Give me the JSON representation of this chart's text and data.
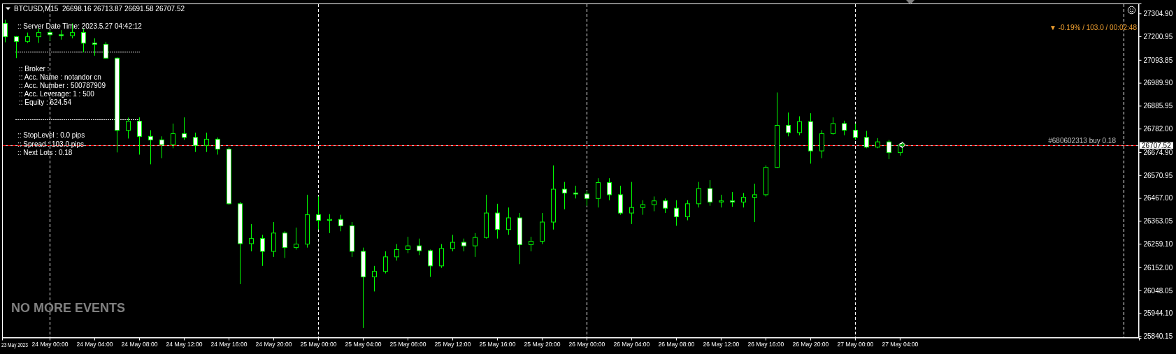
{
  "chart_data": {
    "type": "candlestick",
    "title": "BTCUSD,M15  26698.16 26713.87 26691.58 26707.52",
    "color": "#00ff00",
    "x": [
      "2023-05-23T20:00",
      "2023-05-23T21:00",
      "2023-05-23T22:00",
      "2023-05-23T23:00",
      "2023-05-24T00:00",
      "2023-05-24T01:00",
      "2023-05-24T02:00",
      "2023-05-24T03:00",
      "2023-05-24T04:00",
      "2023-05-24T05:00",
      "2023-05-24T06:00",
      "2023-05-24T07:00",
      "2023-05-24T08:00",
      "2023-05-24T09:00",
      "2023-05-24T10:00",
      "2023-05-24T11:00",
      "2023-05-24T12:00",
      "2023-05-24T13:00",
      "2023-05-24T14:00",
      "2023-05-24T15:00",
      "2023-05-24T16:00",
      "2023-05-24T17:00",
      "2023-05-24T18:00",
      "2023-05-24T19:00",
      "2023-05-24T20:00",
      "2023-05-24T21:00",
      "2023-05-24T22:00",
      "2023-05-24T23:00",
      "2023-05-25T00:00",
      "2023-05-25T01:00",
      "2023-05-25T02:00",
      "2023-05-25T03:00",
      "2023-05-25T04:00",
      "2023-05-25T05:00",
      "2023-05-25T06:00",
      "2023-05-25T07:00",
      "2023-05-25T08:00",
      "2023-05-25T09:00",
      "2023-05-25T10:00",
      "2023-05-25T11:00",
      "2023-05-25T12:00",
      "2023-05-25T13:00",
      "2023-05-25T14:00",
      "2023-05-25T15:00",
      "2023-05-25T16:00",
      "2023-05-25T17:00",
      "2023-05-25T18:00",
      "2023-05-25T19:00",
      "2023-05-25T20:00",
      "2023-05-25T21:00",
      "2023-05-25T22:00",
      "2023-05-25T23:00",
      "2023-05-26T00:00",
      "2023-05-26T01:00",
      "2023-05-26T02:00",
      "2023-05-26T03:00",
      "2023-05-26T04:00",
      "2023-05-26T05:00",
      "2023-05-26T06:00",
      "2023-05-26T07:00",
      "2023-05-26T08:00",
      "2023-05-26T09:00",
      "2023-05-26T10:00",
      "2023-05-26T11:00",
      "2023-05-26T12:00",
      "2023-05-26T13:00",
      "2023-05-26T14:00",
      "2023-05-26T15:00",
      "2023-05-26T16:00",
      "2023-05-26T17:00",
      "2023-05-26T18:00",
      "2023-05-26T19:00",
      "2023-05-26T20:00",
      "2023-05-26T21:00",
      "2023-05-26T22:00",
      "2023-05-26T23:00",
      "2023-05-27T00:00",
      "2023-05-27T01:00",
      "2023-05-27T02:00",
      "2023-05-27T03:00",
      "2023-05-27T04:00"
    ],
    "ohlc": [
      [
        27260,
        27276,
        27174,
        27199
      ],
      [
        27199,
        27202,
        27102,
        27178
      ],
      [
        27178,
        27218,
        27171,
        27199
      ],
      [
        27199,
        27239,
        27171,
        27218
      ],
      [
        27218,
        27229,
        27181,
        27208
      ],
      [
        27208,
        27229,
        27186,
        27204
      ],
      [
        27204,
        27260,
        27192,
        27218
      ],
      [
        27218,
        27234,
        27128,
        27170
      ],
      [
        27170,
        27192,
        27113,
        27165
      ],
      [
        27165,
        27176,
        27100,
        27102
      ],
      [
        27102,
        27105,
        26674,
        26774
      ],
      [
        26774,
        26832,
        26737,
        26816
      ],
      [
        26816,
        26833,
        26664,
        26747
      ],
      [
        26747,
        26775,
        26620,
        26731
      ],
      [
        26731,
        26747,
        26648,
        26709
      ],
      [
        26709,
        26805,
        26693,
        26759
      ],
      [
        26759,
        26833,
        26731,
        26742
      ],
      [
        26742,
        26764,
        26676,
        26706
      ],
      [
        26706,
        26764,
        26676,
        26734
      ],
      [
        26734,
        26742,
        26664,
        26689
      ],
      [
        26689,
        26697,
        26437,
        26441
      ],
      [
        26441,
        26449,
        26076,
        26260
      ],
      [
        26260,
        26349,
        26225,
        26283
      ],
      [
        26283,
        26300,
        26159,
        26225
      ],
      [
        26225,
        26358,
        26200,
        26308
      ],
      [
        26308,
        26316,
        26195,
        26242
      ],
      [
        26242,
        26333,
        26233,
        26258
      ],
      [
        26258,
        26482,
        26242,
        26391
      ],
      [
        26391,
        26474,
        26324,
        26366
      ],
      [
        26366,
        26394,
        26308,
        26370
      ],
      [
        26370,
        26391,
        26316,
        26341
      ],
      [
        26341,
        26358,
        26200,
        26225
      ],
      [
        26225,
        26242,
        25877,
        26109
      ],
      [
        26109,
        26159,
        26043,
        26134
      ],
      [
        26134,
        26225,
        26125,
        26200
      ],
      [
        26200,
        26258,
        26183,
        26233
      ],
      [
        26233,
        26291,
        26217,
        26250
      ],
      [
        26250,
        26283,
        26208,
        26228
      ],
      [
        26228,
        26233,
        26109,
        26159
      ],
      [
        26159,
        26258,
        26150,
        26238
      ],
      [
        26238,
        26300,
        26225,
        26266
      ],
      [
        26266,
        26283,
        26225,
        26250
      ],
      [
        26250,
        26308,
        26200,
        26288
      ],
      [
        26288,
        26482,
        26283,
        26399
      ],
      [
        26399,
        26441,
        26283,
        26324
      ],
      [
        26324,
        26424,
        26300,
        26377
      ],
      [
        26377,
        26399,
        26167,
        26255
      ],
      [
        26255,
        26291,
        26225,
        26271
      ],
      [
        26271,
        26399,
        26258,
        26358
      ],
      [
        26358,
        26615,
        26324,
        26507
      ],
      [
        26507,
        26540,
        26416,
        26490
      ],
      [
        26490,
        26523,
        26465,
        26485
      ],
      [
        26485,
        26499,
        26432,
        26465
      ],
      [
        26465,
        26557,
        26424,
        26537
      ],
      [
        26537,
        26557,
        26457,
        26482
      ],
      [
        26482,
        26523,
        26391,
        26399
      ],
      [
        26399,
        26540,
        26349,
        26424
      ],
      [
        26424,
        26457,
        26391,
        26437
      ],
      [
        26437,
        26474,
        26407,
        26454
      ],
      [
        26454,
        26465,
        26399,
        26421
      ],
      [
        26421,
        26457,
        26341,
        26382
      ],
      [
        26382,
        26457,
        26366,
        26441
      ],
      [
        26441,
        26540,
        26424,
        26510
      ],
      [
        26510,
        26548,
        26432,
        26449
      ],
      [
        26449,
        26482,
        26424,
        26454
      ],
      [
        26454,
        26494,
        26427,
        26449
      ],
      [
        26449,
        26490,
        26424,
        26470
      ],
      [
        26470,
        26532,
        26358,
        26482
      ],
      [
        26482,
        26615,
        26474,
        26606
      ],
      [
        26606,
        26946,
        26603,
        26797
      ],
      [
        26797,
        26855,
        26747,
        26764
      ],
      [
        26764,
        26838,
        26752,
        26814
      ],
      [
        26814,
        26852,
        26623,
        26681
      ],
      [
        26681,
        26775,
        26648,
        26759
      ],
      [
        26759,
        26833,
        26755,
        26805
      ],
      [
        26805,
        26818,
        26752,
        26775
      ],
      [
        26775,
        26805,
        26731,
        26742
      ],
      [
        26742,
        26772,
        26693,
        26698
      ],
      [
        26698,
        26739,
        26693,
        26722
      ],
      [
        26722,
        26731,
        26643,
        26673
      ],
      [
        26673,
        26714,
        26660,
        26707.52
      ]
    ],
    "xlim": [
      "2023-05-23T19:45",
      "2023-05-28T01:23"
    ],
    "ylim": [
      25832,
      27350
    ],
    "xticks": [
      {
        "value": "2023-05-24T00:00",
        "label": "24 May 00:00"
      },
      {
        "value": "2023-05-24T04:00",
        "label": "24 May 04:00"
      },
      {
        "value": "2023-05-24T08:00",
        "label": "24 May 08:00"
      },
      {
        "value": "2023-05-24T12:00",
        "label": "24 May 12:00"
      },
      {
        "value": "2023-05-24T16:00",
        "label": "24 May 16:00"
      },
      {
        "value": "2023-05-24T20:00",
        "label": "24 May 20:00"
      },
      {
        "value": "2023-05-25T00:00",
        "label": "25 May 00:00"
      },
      {
        "value": "2023-05-25T04:00",
        "label": "25 May 04:00"
      },
      {
        "value": "2023-05-25T08:00",
        "label": "25 May 08:00"
      },
      {
        "value": "2023-05-25T12:00",
        "label": "25 May 12:00"
      },
      {
        "value": "2023-05-25T16:00",
        "label": "25 May 16:00"
      },
      {
        "value": "2023-05-25T20:00",
        "label": "25 May 20:00"
      },
      {
        "value": "2023-05-26T00:00",
        "label": "26 May 00:00"
      },
      {
        "value": "2023-05-26T04:00",
        "label": "26 May 04:00"
      },
      {
        "value": "2023-05-26T08:00",
        "label": "26 May 08:00"
      },
      {
        "value": "2023-05-26T12:00",
        "label": "26 May 12:00"
      },
      {
        "value": "2023-05-26T16:00",
        "label": "26 May 16:00"
      },
      {
        "value": "2023-05-26T20:00",
        "label": "26 May 20:00"
      },
      {
        "value": "2023-05-27T00:00",
        "label": "27 May 00:00"
      },
      {
        "value": "2023-05-27T04:00",
        "label": "27 May 04:00"
      }
    ],
    "yticks": [
      {
        "value": 27304.9,
        "label": "27304.90"
      },
      {
        "value": 27200.95,
        "label": "27200.95"
      },
      {
        "value": 27093.85,
        "label": "27093.85"
      },
      {
        "value": 26989.9,
        "label": "26989.90"
      },
      {
        "value": 26885.95,
        "label": "26885.95"
      },
      {
        "value": 26782,
        "label": "26782.00"
      },
      {
        "value": 26674.9,
        "label": "26674.90"
      },
      {
        "value": 26570.95,
        "label": "26570.95"
      },
      {
        "value": 26467,
        "label": "26467.00"
      },
      {
        "value": 26363.05,
        "label": "26363.05"
      },
      {
        "value": 26259.1,
        "label": "26259.10"
      },
      {
        "value": 26152,
        "label": "26152.00"
      },
      {
        "value": 26048.05,
        "label": "26048.05"
      },
      {
        "value": 25944.1,
        "label": "25944.10"
      },
      {
        "value": 25840.15,
        "label": "25840.15"
      }
    ],
    "ref_lines": [
      {
        "axis": "y",
        "value": 26707.52,
        "label": "26707.52",
        "color": "#c0c0c0",
        "line_style": "solid"
      },
      {
        "axis": "y",
        "value": 26707.52,
        "label": "#680602313 buy 0.18",
        "color": "#ff0000",
        "line_style": "dashed"
      },
      {
        "axis": "x",
        "value": "2023-05-24T00:00",
        "color": "#ffffff",
        "line_style": "dashed"
      },
      {
        "axis": "x",
        "value": "2023-05-25T00:00",
        "color": "#ffffff",
        "line_style": "dashed"
      },
      {
        "axis": "x",
        "value": "2023-05-26T00:00",
        "color": "#ffffff",
        "line_style": "dashed"
      },
      {
        "axis": "x",
        "value": "2023-05-27T00:00",
        "color": "#ffffff",
        "line_style": "dashed"
      },
      {
        "axis": "x",
        "value": "2023-05-28T00:00",
        "color": "#ffffff",
        "line_style": "dashed"
      }
    ],
    "annotations": [
      ":: Server Date Time: 2023.5.27 04:42:12",
      ":: Broker :",
      ":: Acc. Name : notandor cn",
      ":: Acc. Number : 500787909",
      ":: Acc. Leverage: 1 : 500",
      ":: Equity : 624.54",
      ":: StopLevel : 0.0 pips",
      ":: Spread : 103.0 pips",
      ":: Next Lots : 0.18",
      "NO MORE EVENTS",
      "▼ -0.19% / 103.0 / 00:02:48",
      "23 May 2023"
    ]
  }
}
